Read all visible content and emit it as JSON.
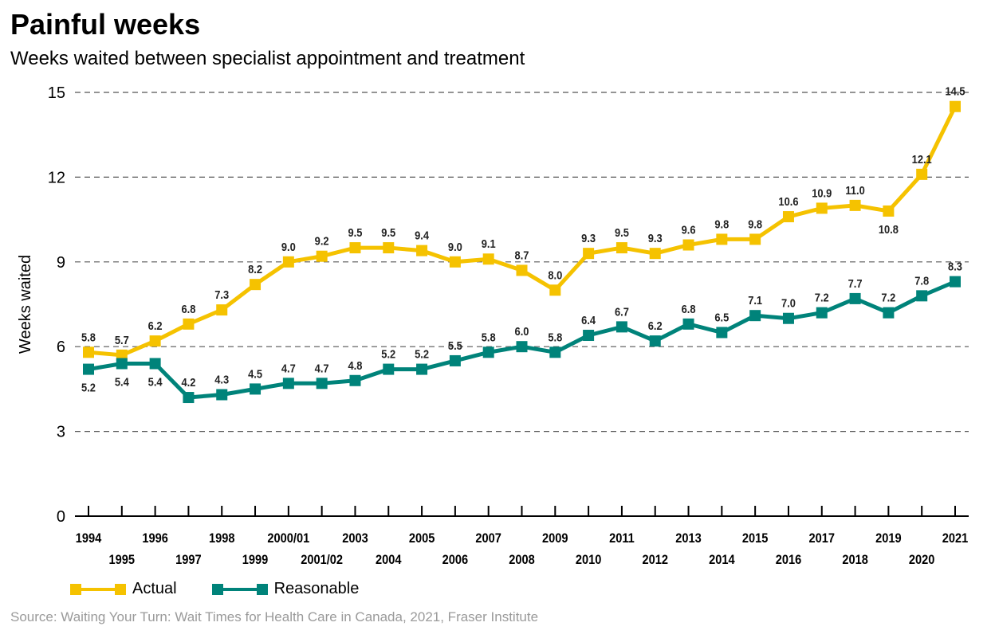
{
  "title": "Painful weeks",
  "subtitle": "Weeks waited between specialist appointment and treatment",
  "source": "Source: Waiting Your Turn: Wait Times for Health Care in Canada, 2021, Fraser Institute",
  "chart_data": {
    "type": "line",
    "ylabel": "Weeks waited",
    "xlabel": "",
    "ylim": [
      0,
      15
    ],
    "yticks": [
      0,
      3,
      6,
      9,
      12,
      15
    ],
    "grid": true,
    "legend_position": "bottom-left",
    "categories": [
      "1994",
      "1995",
      "1996",
      "1997",
      "1998",
      "1999",
      "2000/01",
      "2001/02",
      "2003",
      "2004",
      "2005",
      "2006",
      "2007",
      "2008",
      "2009",
      "2010",
      "2011",
      "2012",
      "2013",
      "2014",
      "2015",
      "2016",
      "2017",
      "2018",
      "2019",
      "2020",
      "2021"
    ],
    "series": [
      {
        "name": "Actual",
        "color": "#f5c200",
        "values": [
          5.8,
          5.7,
          6.2,
          6.8,
          7.3,
          8.2,
          9.0,
          9.2,
          9.5,
          9.5,
          9.4,
          9.0,
          9.1,
          8.7,
          8.0,
          9.3,
          9.5,
          9.3,
          9.6,
          9.8,
          9.8,
          10.6,
          10.9,
          11.0,
          10.8,
          12.1,
          14.5
        ],
        "labels": [
          "5.8",
          "5.7",
          "6.2",
          "6.8",
          "7.3",
          "8.2",
          "9.0",
          "9.2",
          "9.5",
          "9.5",
          "9.4",
          "9.0",
          "9.1",
          "8.7",
          "8.0",
          "9.3",
          "9.5",
          "9.3",
          "9.6",
          "9.8",
          "9.8",
          "10.6",
          "10.9",
          "11.0",
          "10.8",
          "12.1",
          "14.5"
        ]
      },
      {
        "name": "Reasonable",
        "color": "#00837a",
        "values": [
          5.2,
          5.4,
          5.4,
          4.2,
          4.3,
          4.5,
          4.7,
          4.7,
          4.8,
          5.2,
          5.2,
          5.5,
          5.8,
          6.0,
          5.8,
          6.4,
          6.7,
          6.2,
          6.8,
          6.5,
          7.1,
          7.0,
          7.2,
          7.7,
          7.2,
          7.8,
          8.3
        ],
        "labels": [
          "5.2",
          "5.4",
          "5.4",
          "4.2",
          "4.3",
          "4.5",
          "4.7",
          "4.7",
          "4.8",
          "5.2",
          "5.2",
          "5.5",
          "5.8",
          "6.0",
          "5.8",
          "6.4",
          "6.7",
          "6.2",
          "6.8",
          "6.5",
          "7.1",
          "7.0",
          "7.2",
          "7.7",
          "7.2",
          "7.8",
          "8.3"
        ]
      }
    ]
  }
}
